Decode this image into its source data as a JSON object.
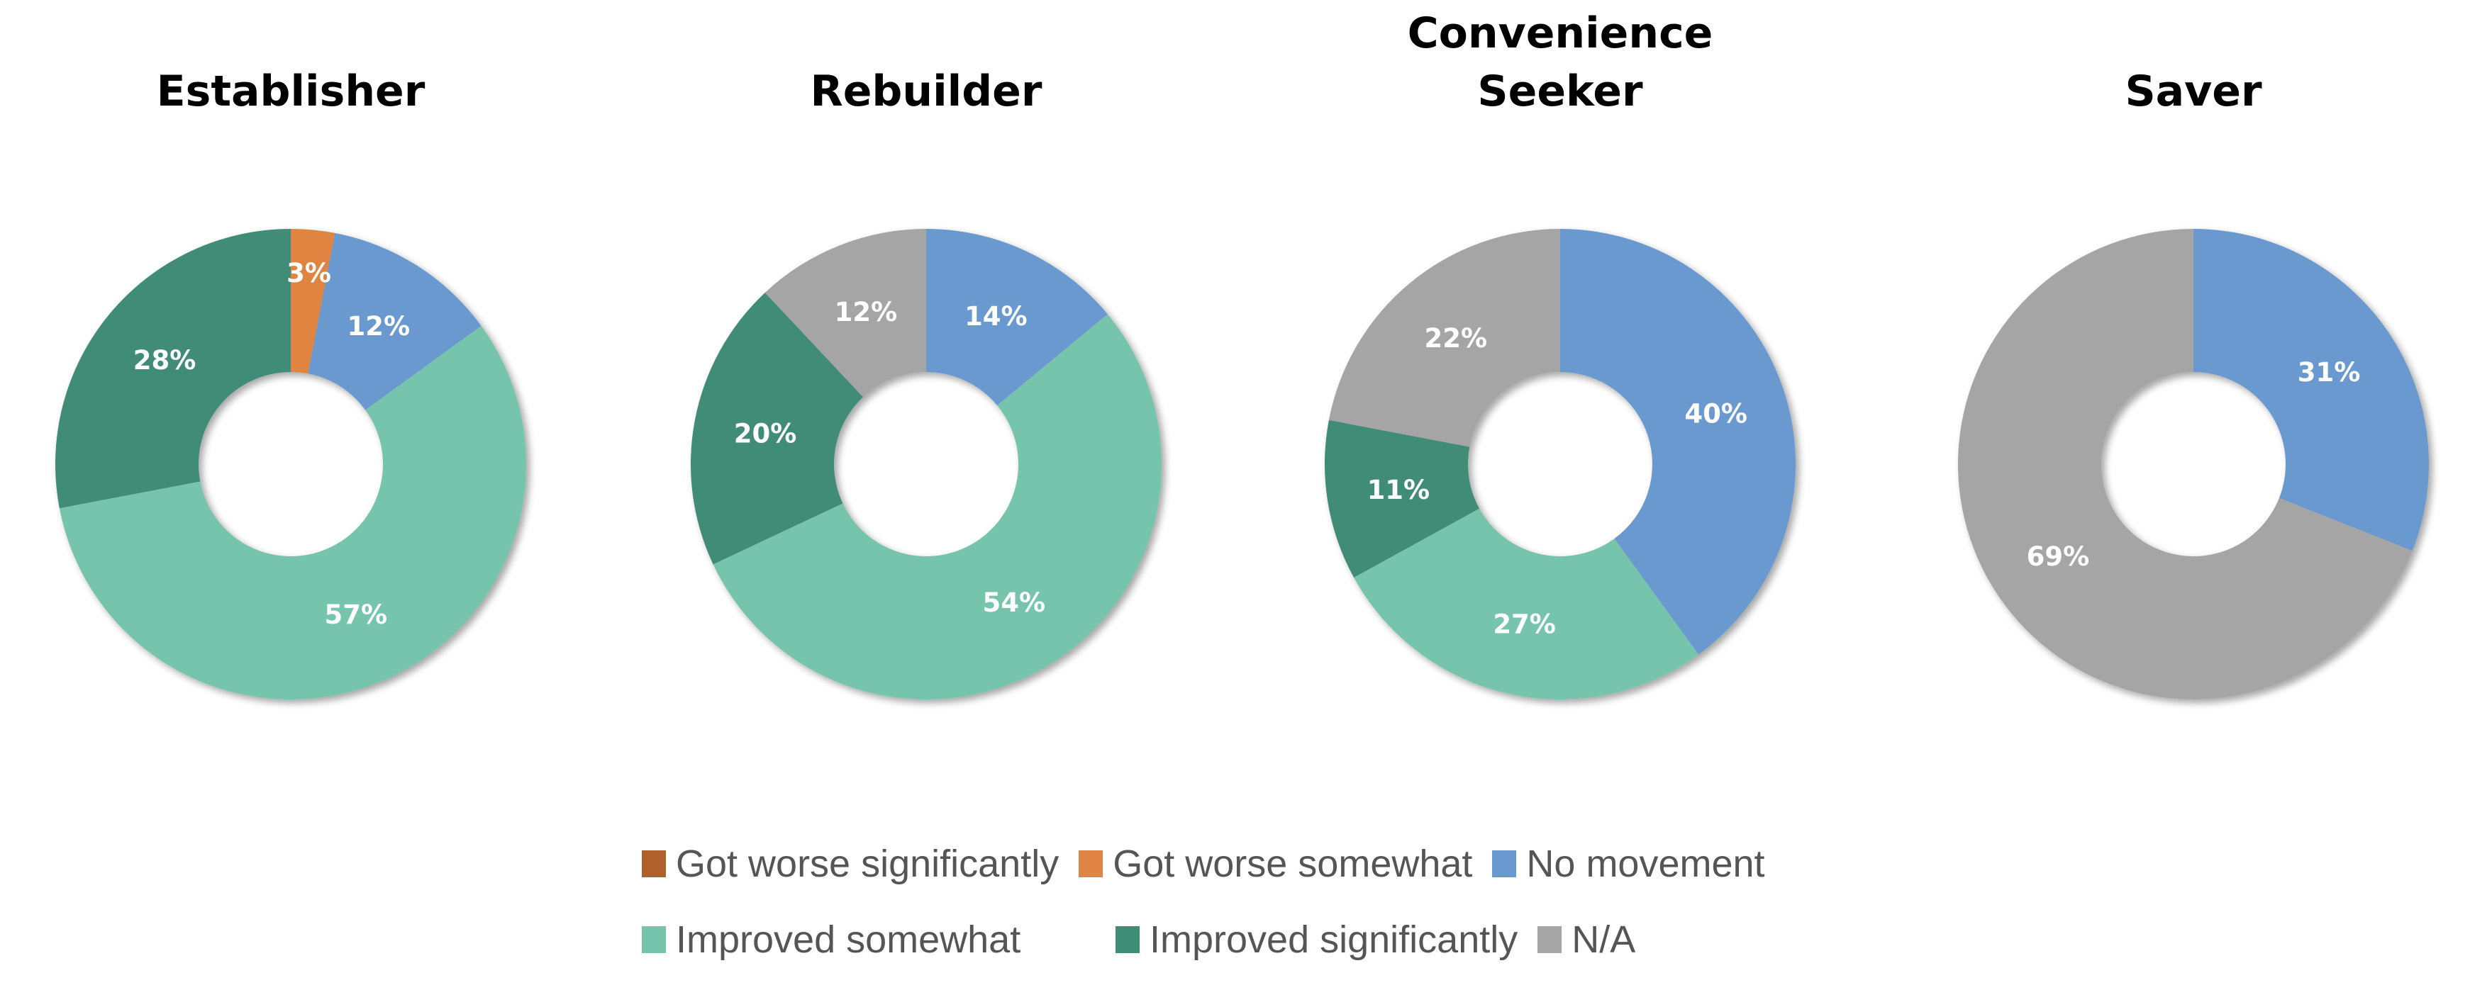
{
  "chart_data": [
    {
      "type": "pie",
      "title": "Establisher",
      "labels": [
        "Got worse significantly",
        "Got worse somewhat",
        "No movement",
        "Improved somewhat",
        "Improved significantly",
        "N/A"
      ],
      "values": [
        0,
        3,
        12,
        57,
        28,
        0
      ]
    },
    {
      "type": "pie",
      "title": "Rebuilder",
      "labels": [
        "Got worse significantly",
        "Got worse somewhat",
        "No movement",
        "Improved somewhat",
        "Improved significantly",
        "N/A"
      ],
      "values": [
        0,
        0,
        14,
        54,
        20,
        12
      ]
    },
    {
      "type": "pie",
      "title": "Convenience Seeker",
      "title_lines": [
        "Convenience",
        "Seeker"
      ],
      "labels": [
        "Got worse significantly",
        "Got worse somewhat",
        "No movement",
        "Improved somewhat",
        "Improved significantly",
        "N/A"
      ],
      "values": [
        0,
        0,
        40,
        27,
        11,
        22
      ]
    },
    {
      "type": "pie",
      "title": "Saver",
      "labels": [
        "Got worse significantly",
        "Got worse somewhat",
        "No movement",
        "Improved somewhat",
        "Improved significantly",
        "N/A"
      ],
      "values": [
        0,
        0,
        31,
        0,
        0,
        69
      ]
    }
  ],
  "donut": true,
  "legend": {
    "placement": "bottom",
    "items": [
      {
        "label": "Got worse significantly",
        "color": "#B0602A"
      },
      {
        "label": "Got worse somewhat",
        "color": "#E08443"
      },
      {
        "label": "No movement",
        "color": "#6A99D0"
      },
      {
        "label": "Improved somewhat",
        "color": "#76C4AC"
      },
      {
        "label": "Improved significantly",
        "color": "#3F8C76"
      },
      {
        "label": "N/A",
        "color": "#A5A5A5"
      }
    ]
  }
}
